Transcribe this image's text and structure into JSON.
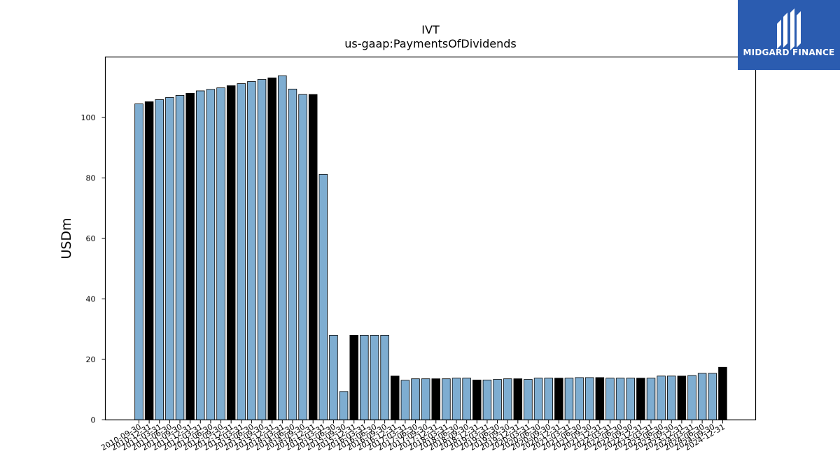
{
  "chart_data": {
    "type": "bar",
    "title": "IVT",
    "subtitle": "us-gaap:PaymentsOfDividends",
    "xlabel": "",
    "ylabel": "USDm",
    "ylim": [
      0,
      120
    ],
    "yticks": [
      0,
      20,
      40,
      60,
      80,
      100
    ],
    "grid": false,
    "colors": {
      "quarter": "#7eadd1",
      "annual": "#000000",
      "edge": "#000000"
    },
    "categories": [
      "2010-09-30",
      "2010-12-31",
      "2011-03-31",
      "2011-06-30",
      "2011-09-30",
      "2011-12-31",
      "2012-03-31",
      "2012-06-30",
      "2012-09-30",
      "2012-12-31",
      "2013-03-31",
      "2013-06-30",
      "2013-09-30",
      "2013-12-31",
      "2014-03-31",
      "2014-06-30",
      "2014-09-30",
      "2014-12-31",
      "2015-03-31",
      "2015-06-30",
      "2015-09-30",
      "2015-12-31",
      "2016-03-31",
      "2016-06-30",
      "2016-09-30",
      "2016-12-31",
      "2017-03-31",
      "2017-06-30",
      "2017-09-30",
      "2017-12-31",
      "2018-03-31",
      "2018-06-30",
      "2018-09-30",
      "2018-12-31",
      "2019-03-31",
      "2019-06-30",
      "2019-09-30",
      "2019-12-31",
      "2020-03-31",
      "2020-06-30",
      "2020-09-30",
      "2020-12-31",
      "2021-03-31",
      "2021-06-30",
      "2021-09-30",
      "2021-12-31",
      "2022-03-31",
      "2022-06-30",
      "2022-09-30",
      "2022-12-31",
      "2023-03-31",
      "2023-06-30",
      "2023-09-30",
      "2023-12-31",
      "2024-03-31",
      "2024-06-30",
      "2024-09-30",
      "2024-12-31"
    ],
    "values": [
      104.5,
      105.2,
      105.9,
      106.6,
      107.3,
      108.0,
      108.8,
      109.3,
      109.8,
      110.5,
      111.2,
      111.9,
      112.6,
      113.1,
      113.8,
      109.4,
      107.6,
      107.6,
      81.2,
      28.0,
      9.4,
      28.0,
      28.0,
      28.0,
      28.0,
      14.5,
      13.1,
      13.6,
      13.6,
      13.6,
      13.6,
      13.8,
      13.8,
      13.2,
      13.2,
      13.4,
      13.6,
      13.6,
      13.4,
      13.8,
      13.8,
      13.8,
      13.8,
      14.0,
      14.0,
      14.0,
      13.8,
      13.8,
      13.8,
      13.8,
      13.8,
      14.5,
      14.5,
      14.5,
      14.7,
      15.4,
      15.4,
      17.4
    ],
    "annual": [
      false,
      true,
      false,
      false,
      false,
      true,
      false,
      false,
      false,
      true,
      false,
      false,
      false,
      true,
      false,
      false,
      false,
      true,
      false,
      false,
      false,
      true,
      false,
      false,
      false,
      true,
      false,
      false,
      false,
      true,
      false,
      false,
      false,
      true,
      false,
      false,
      false,
      true,
      false,
      false,
      false,
      true,
      false,
      false,
      false,
      true,
      false,
      false,
      false,
      true,
      false,
      false,
      false,
      true,
      false,
      false,
      false,
      true
    ]
  },
  "logo": {
    "text": "MIDGARD FINANCE",
    "background": "#2b5cb0"
  }
}
